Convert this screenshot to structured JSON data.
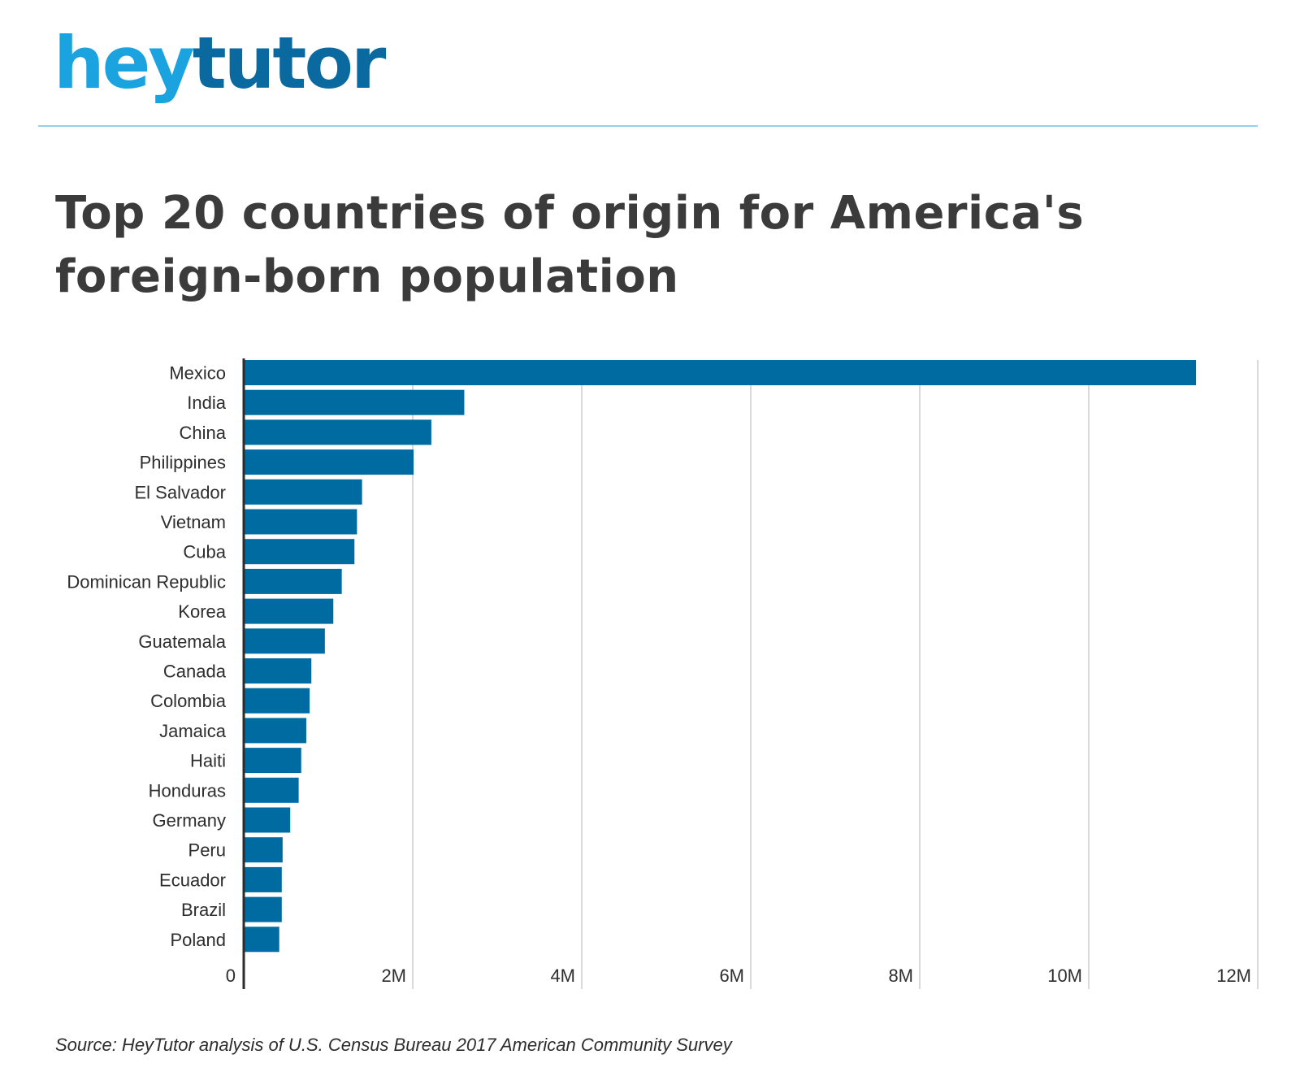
{
  "logo": {
    "part1": "hey",
    "part2": "tutor"
  },
  "colors": {
    "bar": "#006ba1",
    "grid": "#d9d9d9",
    "axis": "#2d2d2d",
    "logo_light": "#1ba3e0",
    "logo_dark": "#0a6aa0"
  },
  "source": "Source: HeyTutor analysis of U.S. Census Bureau 2017 American Community Survey",
  "chart_data": {
    "type": "bar",
    "orientation": "horizontal",
    "title": "Top 20 countries of origin for America's foreign-born population",
    "categories": [
      "Mexico",
      "India",
      "China",
      "Philippines",
      "El Salvador",
      "Vietnam",
      "Cuba",
      "Dominican Republic",
      "Korea",
      "Guatemala",
      "Canada",
      "Colombia",
      "Jamaica",
      "Haiti",
      "Honduras",
      "Germany",
      "Peru",
      "Ecuador",
      "Brazil",
      "Poland"
    ],
    "values": [
      11270000,
      2610000,
      2220000,
      2010000,
      1400000,
      1340000,
      1310000,
      1160000,
      1060000,
      960000,
      800000,
      780000,
      740000,
      680000,
      650000,
      550000,
      460000,
      450000,
      450000,
      420000
    ],
    "xlim": [
      0,
      12000000
    ],
    "x_ticks": [
      0,
      2000000,
      4000000,
      6000000,
      8000000,
      10000000,
      12000000
    ],
    "x_tick_labels": [
      "0",
      "2M",
      "4M",
      "6M",
      "8M",
      "10M",
      "12M"
    ],
    "xlabel": "",
    "ylabel": "",
    "grid": true,
    "legend": "none"
  }
}
